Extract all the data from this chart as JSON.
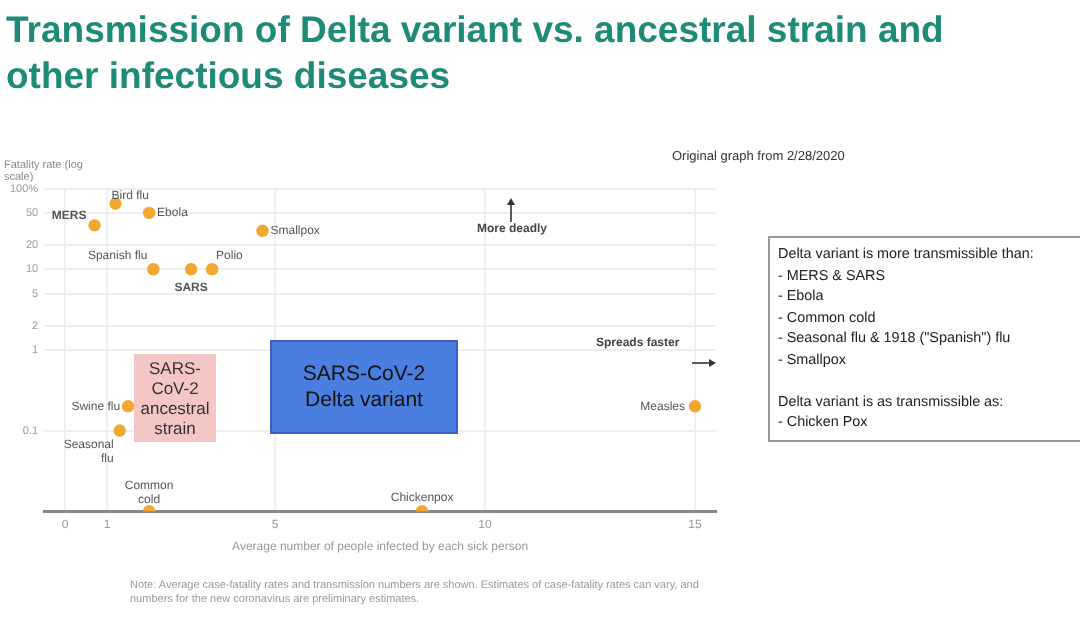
{
  "chart_data": {
    "type": "scatter",
    "title": "Transmission of Delta variant vs. ancestral strain and other infectious diseases",
    "xlabel": "Average number of people infected by each sick person",
    "ylabel": "Fatality rate (log scale)",
    "log": "y",
    "grid": true,
    "legend": false,
    "marker": "circle",
    "xlim": [
      -0.5,
      15.5
    ],
    "xticks": [
      0,
      1,
      5,
      10,
      15
    ],
    "ylim": [
      0.01,
      100
    ],
    "yticks": [
      {
        "value": 100,
        "label": "100%"
      },
      50,
      20,
      10,
      5,
      2,
      1,
      0.1
    ],
    "series": [
      {
        "name": "Bird flu",
        "color": "#f0a830",
        "x": [
          1.2
        ],
        "values": [
          65
        ]
      },
      {
        "name": "MERS",
        "color": "#f0a830",
        "x": [
          0.7
        ],
        "values": [
          35
        ]
      },
      {
        "name": "Ebola",
        "color": "#f0a830",
        "x": [
          2.0
        ],
        "values": [
          50
        ]
      },
      {
        "name": "Smallpox",
        "color": "#f0a830",
        "x": [
          4.7
        ],
        "values": [
          30
        ]
      },
      {
        "name": "Spanish flu",
        "color": "#f0a830",
        "x": [
          2.1
        ],
        "values": [
          10
        ]
      },
      {
        "name": "SARS",
        "color": "#f0a830",
        "x": [
          3.0
        ],
        "values": [
          10
        ]
      },
      {
        "name": "Polio",
        "color": "#f0a830",
        "x": [
          3.5
        ],
        "values": [
          10
        ]
      },
      {
        "name": "Swine flu",
        "color": "#f0a830",
        "x": [
          1.5
        ],
        "values": [
          0.2
        ]
      },
      {
        "name": "Seasonal flu",
        "color": "#f0a830",
        "x": [
          1.3
        ],
        "values": [
          0.1
        ]
      },
      {
        "name": "Common cold",
        "color": "#f0a830",
        "x": [
          2.0
        ],
        "values": [
          0.01
        ]
      },
      {
        "name": "Chickenpox",
        "color": "#f0a830",
        "x": [
          8.5
        ],
        "values": [
          0.01
        ]
      },
      {
        "name": "Measles",
        "color": "#f0a830",
        "x": [
          15
        ],
        "values": [
          0.2
        ]
      }
    ],
    "annotations": [
      "SARS-CoV-2 ancestral strain",
      "SARS-CoV-2 Delta variant",
      "More deadly",
      "Spreads faster",
      "Original graph from 2/28/2020",
      "Delta variant is more transmissible than:\n-  MERS & SARS\n-  Ebola\n-  Common cold\n-  Seasonal flu & 1918 (\"Spanish\") flu\n-  Smallpox\n\nDelta variant is as transmissible as:\n- Chicken Pox",
      "Note: Average case-fatality rates and transmission numbers are shown. Estimates of case-fatality rates can vary, and numbers for the new coronavirus are preliminary estimates."
    ]
  }
}
